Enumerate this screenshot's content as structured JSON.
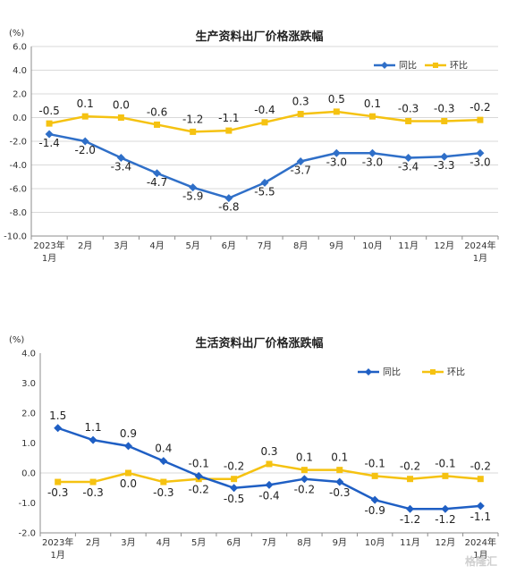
{
  "colors": {
    "yoy": "#2f6fc8",
    "mom": "#f5c211",
    "grid": "#d9d9d9",
    "axis": "#8c8c8c"
  },
  "watermark": "格隆汇",
  "chart_data": [
    {
      "type": "line",
      "title": "生产资料出厂价格涨跌幅",
      "unit": "(%)",
      "ylim": [
        -10.0,
        6.0
      ],
      "yticks": [
        -10.0,
        -8.0,
        -6.0,
        -4.0,
        -2.0,
        0.0,
        2.0,
        4.0,
        6.0
      ],
      "ytick_labels": [
        "-10.0",
        "-8.0",
        "-6.0",
        "-4.0",
        "-2.0",
        "0.0",
        "2.0",
        "4.0",
        "6.0"
      ],
      "grid": true,
      "legend_position": "top-right",
      "categories": [
        "2023年|1月",
        "2月",
        "3月",
        "4月",
        "5月",
        "6月",
        "7月",
        "8月",
        "9月",
        "10月",
        "11月",
        "12月",
        "2024年|1月"
      ],
      "series": [
        {
          "name": "同比",
          "color": "#2f6fc8",
          "marker": "diamond",
          "values": [
            -1.4,
            -2.0,
            -3.4,
            -4.7,
            -5.9,
            -6.8,
            -5.5,
            -3.7,
            -3.0,
            -3.0,
            -3.4,
            -3.3,
            -3.0
          ],
          "labels": [
            "-1.4",
            "-2.0",
            "-3.4",
            "-4.7",
            "-5.9",
            "-6.8",
            "-5.5",
            "-3.7",
            "-3.0",
            "-3.0",
            "-3.4",
            "-3.3",
            "-3.0"
          ]
        },
        {
          "name": "环比",
          "color": "#f5c211",
          "marker": "square",
          "values": [
            -0.5,
            0.1,
            0.0,
            -0.6,
            -1.2,
            -1.1,
            -0.4,
            0.3,
            0.5,
            0.1,
            -0.3,
            -0.3,
            -0.2
          ],
          "labels": [
            "-0.5",
            "0.1",
            "0.0",
            "-0.6",
            "-1.2",
            "-1.1",
            "-0.4",
            "0.3",
            "0.5",
            "0.1",
            "-0.3",
            "-0.3",
            "-0.2"
          ]
        }
      ]
    },
    {
      "type": "line",
      "title": "生活资料出厂价格涨跌幅",
      "unit": "(%)",
      "ylim": [
        -2.0,
        4.0
      ],
      "yticks": [
        -2.0,
        -1.0,
        0.0,
        1.0,
        2.0,
        3.0,
        4.0
      ],
      "ytick_labels": [
        "-2.0",
        "-1.0",
        "0.0",
        "1.0",
        "2.0",
        "3.0",
        "4.0"
      ],
      "grid": false,
      "legend_position": "top-right",
      "categories": [
        "2023年|1月",
        "2月",
        "3月",
        "4月",
        "5月",
        "6月",
        "7月",
        "8月",
        "9月",
        "10月",
        "11月",
        "12月",
        "2024年|1月"
      ],
      "series": [
        {
          "name": "同比",
          "color": "#1f5fc4",
          "marker": "diamond",
          "values": [
            1.5,
            1.1,
            0.9,
            0.4,
            -0.1,
            -0.5,
            -0.4,
            -0.2,
            -0.3,
            -0.9,
            -1.2,
            -1.2,
            -1.1
          ],
          "labels": [
            "1.5",
            "1.1",
            "0.9",
            "0.4",
            "-0.1",
            "-0.5",
            "-0.4",
            "-0.2",
            "-0.3",
            "-0.9",
            "-1.2",
            "-1.2",
            "-1.1"
          ]
        },
        {
          "name": "环比",
          "color": "#f5c211",
          "marker": "square",
          "values": [
            -0.3,
            -0.3,
            0.0,
            -0.3,
            -0.2,
            -0.2,
            0.3,
            0.1,
            0.1,
            -0.1,
            -0.2,
            -0.1,
            -0.2
          ],
          "labels": [
            "-0.3",
            "-0.3",
            "0.0",
            "-0.3",
            "-0.2",
            "-0.2",
            "0.3",
            "0.1",
            "0.1",
            "-0.1",
            "-0.2",
            "-0.1",
            "-0.2"
          ]
        }
      ]
    }
  ]
}
